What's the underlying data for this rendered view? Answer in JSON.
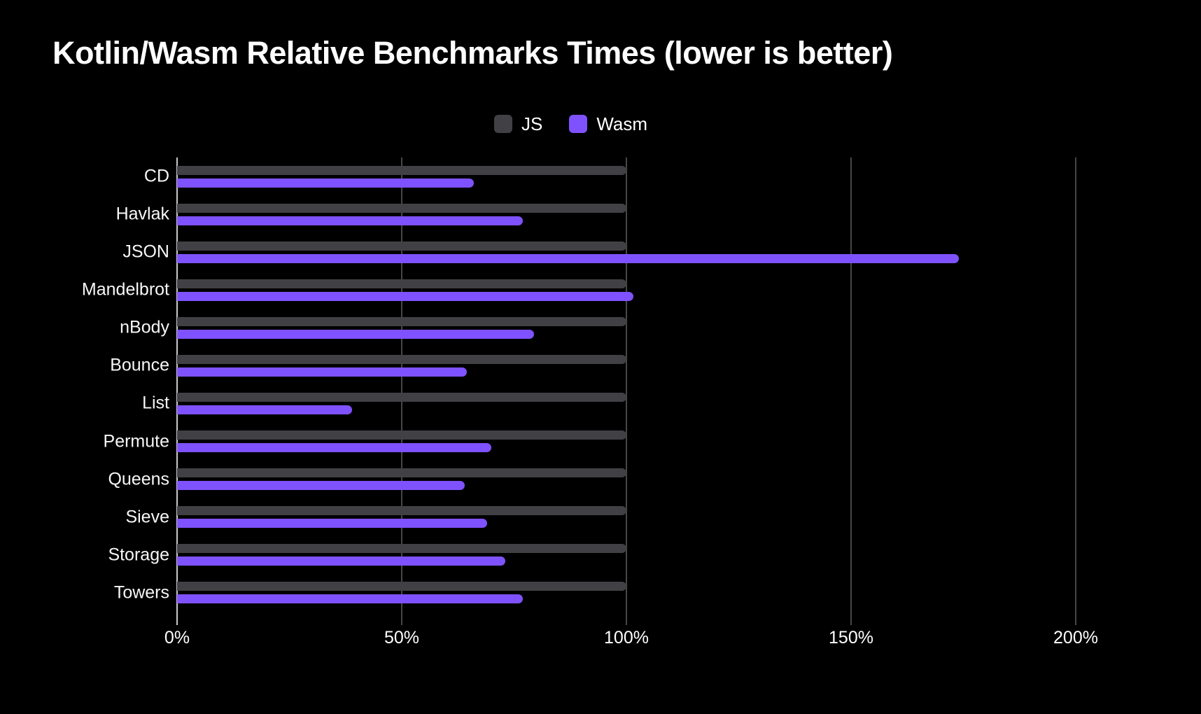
{
  "title": "Kotlin/Wasm Relative Benchmarks Times (lower is better)",
  "legend": [
    {
      "label": "JS",
      "color": "#414145"
    },
    {
      "label": "Wasm",
      "color": "#7F52FF"
    }
  ],
  "colors": {
    "background": "#000000",
    "js_bar": "#414145",
    "wasm_bar": "#7F52FF",
    "gridline": "#47474a",
    "zero_axis": "#c9c9c9",
    "text": "#ffffff"
  },
  "chart_data": {
    "type": "bar",
    "orientation": "horizontal",
    "title": "Kotlin/Wasm Relative Benchmarks Times (lower is better)",
    "categories": [
      "CD",
      "Havlak",
      "JSON",
      "Mandelbrot",
      "nBody",
      "Bounce",
      "List",
      "Permute",
      "Queens",
      "Sieve",
      "Storage",
      "Towers"
    ],
    "series": [
      {
        "name": "JS",
        "color": "#414145",
        "values": [
          100,
          100,
          100,
          100,
          100,
          100,
          100,
          100,
          100,
          100,
          100,
          100
        ]
      },
      {
        "name": "Wasm",
        "color": "#7F52FF",
        "values": [
          66,
          77,
          174,
          101.5,
          79.5,
          64.5,
          39,
          70,
          64,
          69,
          73,
          77
        ]
      }
    ],
    "xlabel": "",
    "ylabel": "",
    "x_max": 200,
    "x_ticks": [
      0,
      50,
      100,
      150,
      200
    ],
    "x_tick_labels": [
      "0%",
      "50%",
      "100%",
      "150%",
      "200%"
    ],
    "grid": true,
    "legend_position": "top-center",
    "unit": "percent"
  }
}
